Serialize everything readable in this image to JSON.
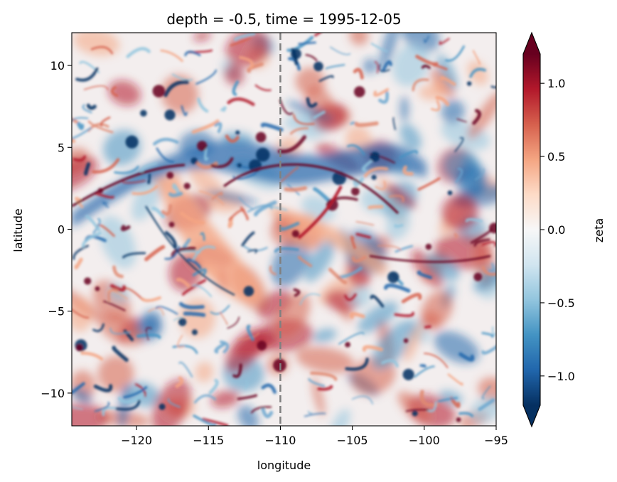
{
  "chart_data": {
    "type": "heatmap",
    "title": "depth = -0.5, time = 1995-12-05",
    "xlabel": "longitude",
    "ylabel": "latitude",
    "xlim": [
      -124.5,
      -95
    ],
    "ylim": [
      -12,
      12
    ],
    "xticks": [
      -120,
      -115,
      -110,
      -105,
      -100,
      -95
    ],
    "xtick_labels": [
      "−120",
      "−115",
      "−110",
      "−105",
      "−100",
      "−95"
    ],
    "yticks": [
      10,
      5,
      0,
      -5,
      -10
    ],
    "ytick_labels": [
      "10",
      "5",
      "0",
      "−5",
      "−10"
    ],
    "colorbar": {
      "label": "zeta",
      "colormap": "RdBu_r",
      "vmin": -1.2,
      "vmax": 1.2,
      "extend": "both",
      "ticks": [
        1.0,
        0.5,
        0.0,
        -0.5,
        -1.0
      ],
      "tick_labels": [
        "1.0",
        "0.5",
        "0.0",
        "−0.5",
        "−1.0"
      ]
    },
    "reference_line": {
      "x": -110,
      "style": "dashed",
      "color": "#808080"
    },
    "grid": false
  }
}
